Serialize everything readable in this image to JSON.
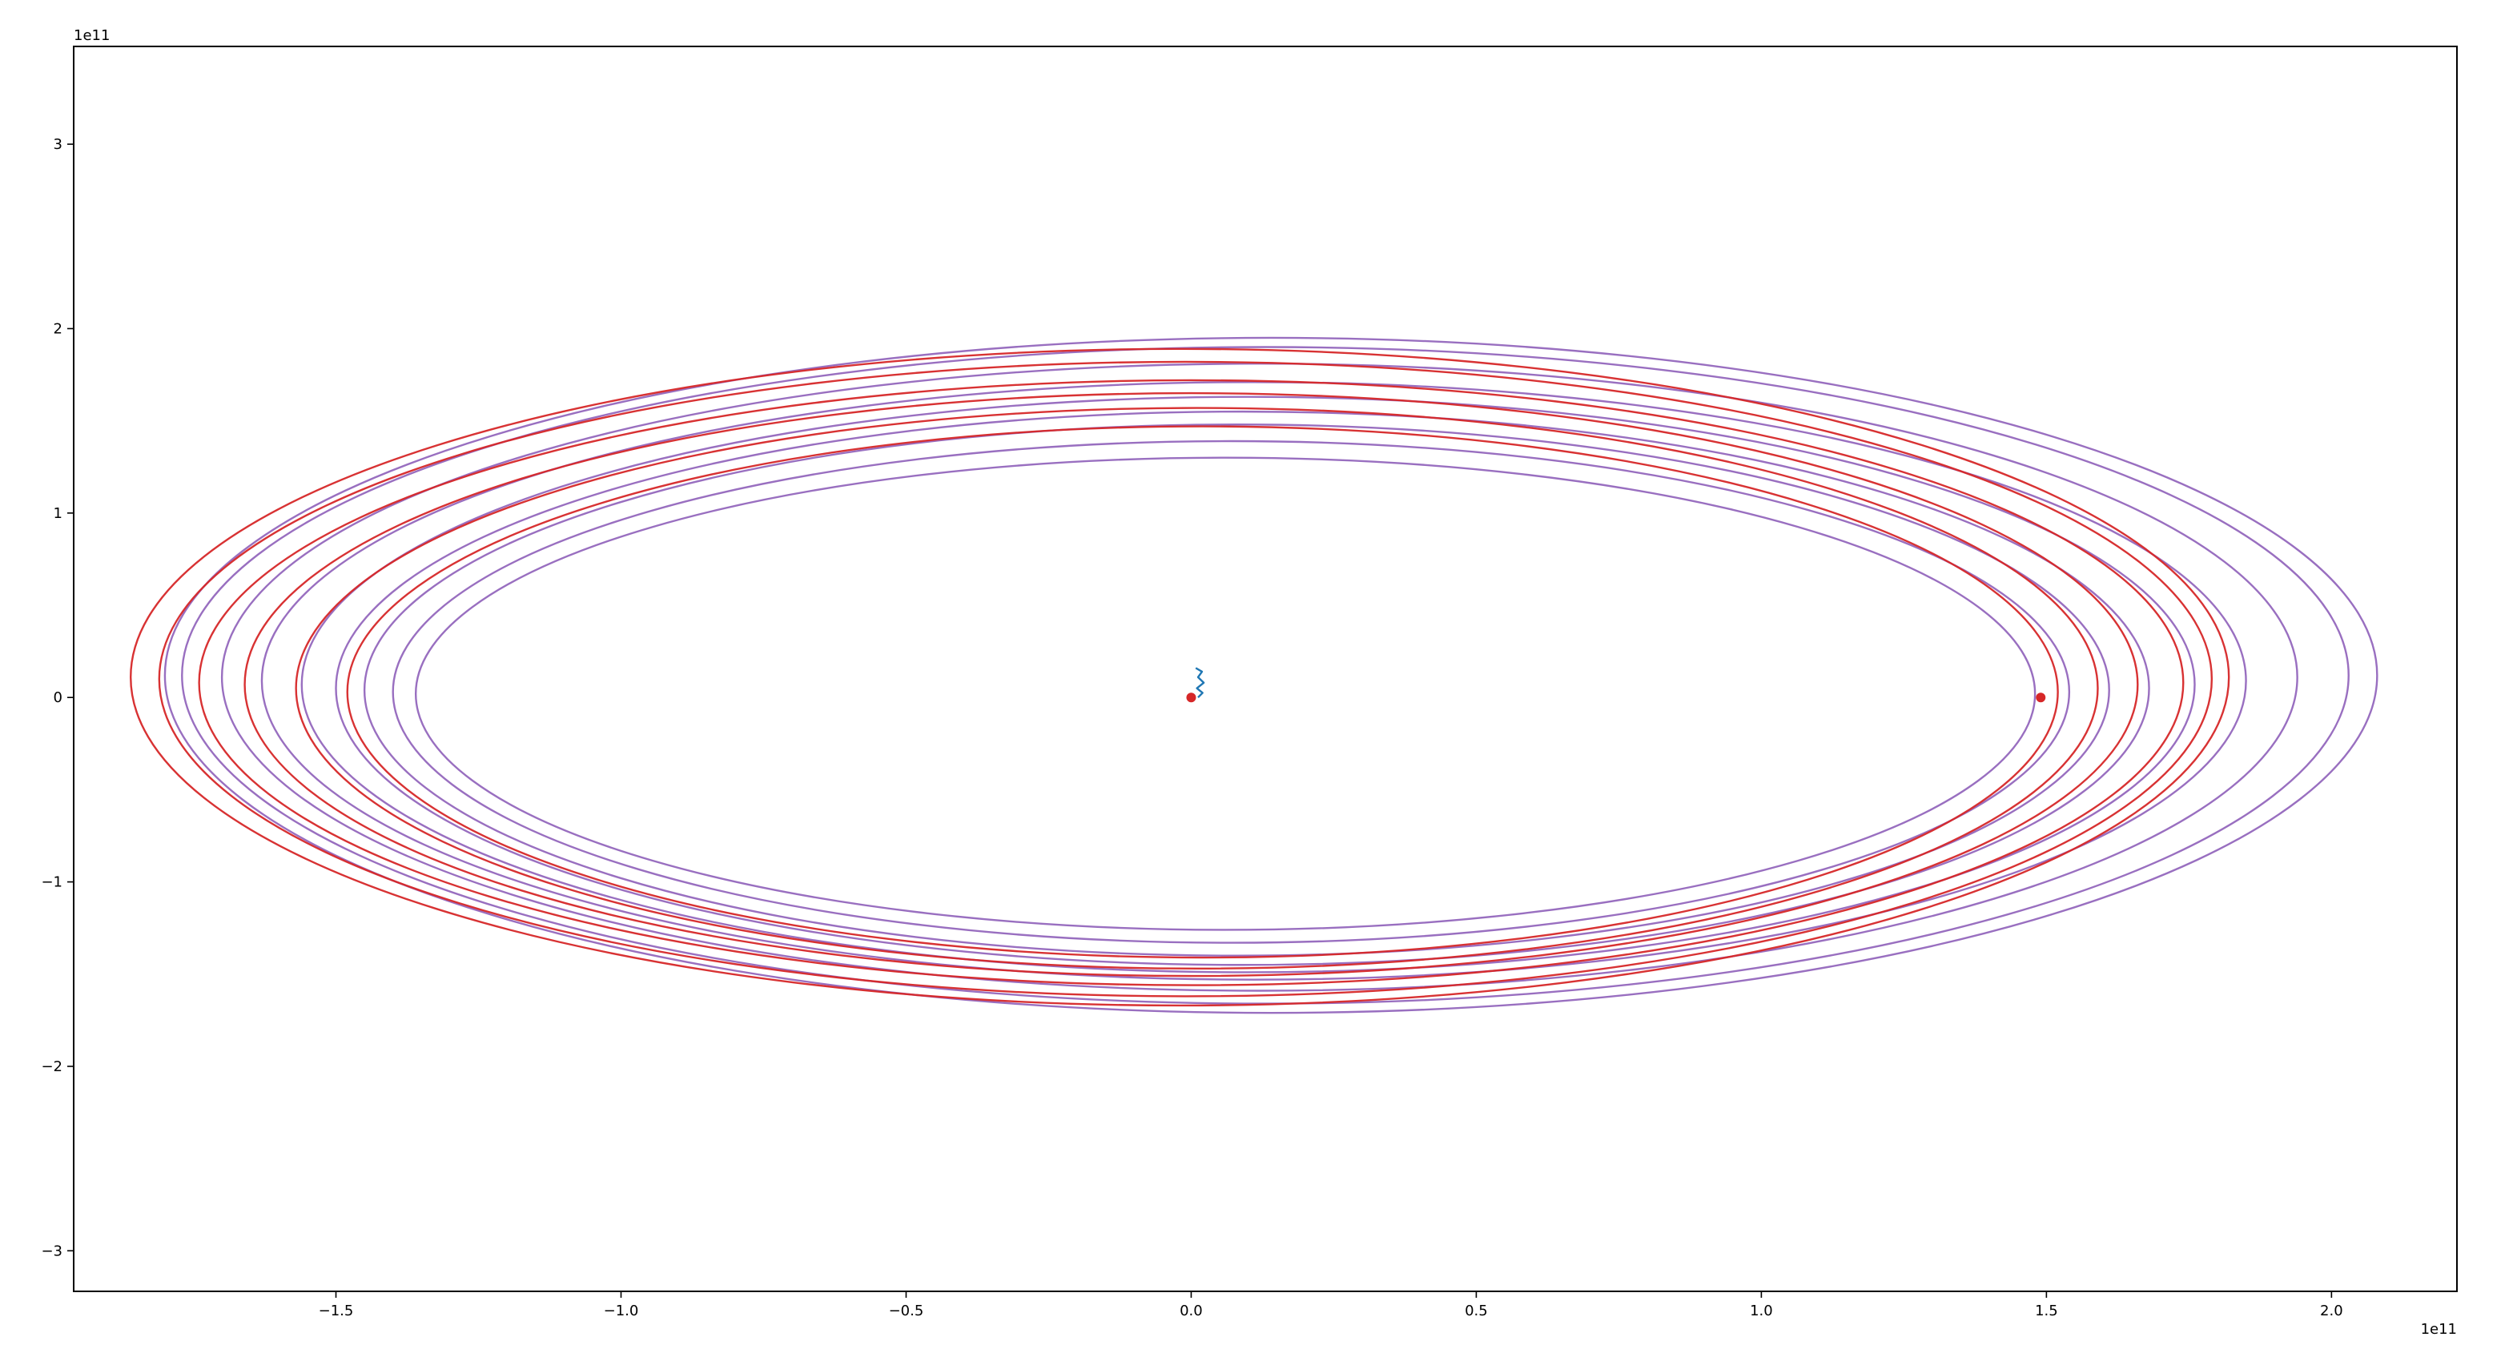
{
  "figure": {
    "background": "#ffffff"
  },
  "chart_data": {
    "type": "line",
    "title": "",
    "xlabel": "",
    "ylabel": "",
    "x_offset_label": "1e11",
    "y_offset_label": "1e11",
    "xlim": [
      -196000000000.0,
      222000000000.0
    ],
    "ylim": [
      -322000000000.0,
      353000000000.0
    ],
    "xticks": [
      -150000000000.0,
      -100000000000.0,
      -50000000000.0,
      0.0,
      50000000000.0,
      100000000000.0,
      150000000000.0,
      200000000000.0
    ],
    "xtick_labels": [
      "−1.5",
      "−1.0",
      "−0.5",
      "0.0",
      "0.5",
      "1.0",
      "1.5",
      "2.0"
    ],
    "yticks": [
      -300000000000.0,
      -200000000000.0,
      -100000000000.0,
      0,
      100000000000.0,
      200000000000.0,
      300000000000.0
    ],
    "ytick_labels": [
      "−3",
      "−2",
      "−1",
      "0",
      "1",
      "2",
      "3"
    ],
    "grid": false,
    "legend": "none",
    "series": [
      {
        "color": "#9467bd",
        "kind": "orbit-family",
        "orbits": [
          {
            "cx": 6000000000.0,
            "cy": 2000000000.0,
            "a": 142000000000.0,
            "b": 128000000000.0
          },
          {
            "cx": 7000000000.0,
            "cy": 3000000000.0,
            "a": 147000000000.0,
            "b": 136000000000.0
          },
          {
            "cx": 8000000000.0,
            "cy": 4000000000.0,
            "a": 153000000000.0,
            "b": 144000000000.0
          },
          {
            "cx": 9000000000.0,
            "cy": 5000000000.0,
            "a": 159000000000.0,
            "b": 150000000000.0
          },
          {
            "cx": 10000000000.0,
            "cy": 7000000000.0,
            "a": 166000000000.0,
            "b": 156000000000.0
          },
          {
            "cx": 11000000000.0,
            "cy": 9000000000.0,
            "a": 174000000000.0,
            "b": 162000000000.0
          },
          {
            "cx": 12000000000.0,
            "cy": 11000000000.0,
            "a": 182000000000.0,
            "b": 170000000000.0
          },
          {
            "cx": 13000000000.0,
            "cy": 12000000000.0,
            "a": 190000000000.0,
            "b": 178000000000.0
          },
          {
            "cx": 14000000000.0,
            "cy": 12000000000.0,
            "a": 194000000000.0,
            "b": 183000000000.0
          }
        ]
      },
      {
        "color": "#d62728",
        "kind": "orbit-family",
        "orbits": [
          {
            "cx": 2000000000.0,
            "cy": 3000000000.0,
            "a": 150000000000.0,
            "b": 144000000000.0
          },
          {
            "cx": 1000000000.0,
            "cy": 5000000000.0,
            "a": 158000000000.0,
            "b": 152000000000.0
          },
          {
            "cx": 0.0,
            "cy": 7000000000.0,
            "a": 166000000000.0,
            "b": 158000000000.0
          },
          {
            "cx": 0.0,
            "cy": 8000000000.0,
            "a": 174000000000.0,
            "b": 164000000000.0
          },
          {
            "cx": -1000000000.0,
            "cy": 10000000000.0,
            "a": 180000000000.0,
            "b": 172000000000.0
          },
          {
            "cx": -2000000000.0,
            "cy": 11000000000.0,
            "a": 184000000000.0,
            "b": 178000000000.0
          }
        ]
      },
      {
        "color": "#1f77b4",
        "kind": "wiggle",
        "x": [
          1200000000.0,
          2000000000.0,
          1000000000.0,
          2200000000.0,
          1200000000.0,
          1900000000.0,
          800000000.0
        ],
        "y": [
          0.0,
          2500000000.0,
          5000000000.0,
          8000000000.0,
          11000000000.0,
          14000000000.0,
          16000000000.0
        ]
      }
    ],
    "markers": [
      {
        "x": 0.0,
        "y": 0.0,
        "color": "#d62728"
      },
      {
        "x": 149000000000.0,
        "y": 0.0,
        "color": "#d62728"
      }
    ]
  }
}
